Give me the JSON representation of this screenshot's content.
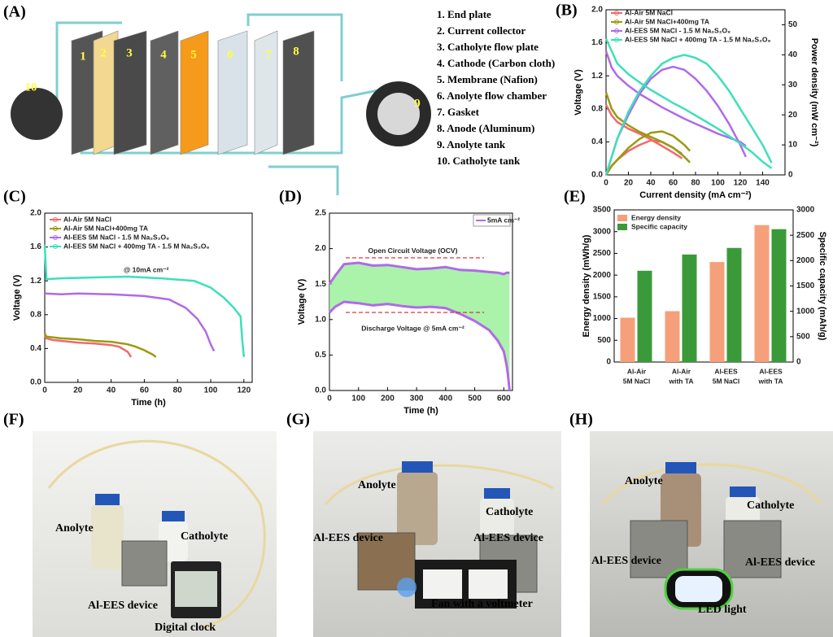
{
  "panel_labels": [
    "(A)",
    "(B)",
    "(C)",
    "(D)",
    "(E)",
    "(F)",
    "(G)",
    "(H)"
  ],
  "exploded_view": {
    "layer_labels": [
      "1",
      "2",
      "3",
      "4",
      "5",
      "6",
      "7",
      "8",
      "9",
      "10"
    ],
    "items": [
      "1.  End plate",
      "2.  Current collector",
      "3.  Catholyte flow plate",
      "4.  Cathode (Carbon cloth)",
      "5.  Membrane (Nafion)",
      "6.  Anolyte flow chamber",
      "7.  Gasket",
      "8.  Anode (Aluminum)",
      "9.  Anolyte tank",
      "10. Catholyte tank"
    ]
  },
  "chart_data": [
    {
      "type": "line",
      "xlabel": "Current density (mA cm⁻²)",
      "ylabel": "Voltage (V)",
      "y2label": "Power density (mW cm⁻²)",
      "xlim": [
        0,
        160
      ],
      "xticks": [
        0,
        20,
        40,
        60,
        80,
        100,
        120,
        140
      ],
      "ylim": [
        0,
        2.0
      ],
      "yticks": [
        {
          "value": 0,
          "label": "0.0"
        },
        0.4,
        0.8,
        1.2,
        1.6,
        {
          "value": 2.0,
          "label": "2.0"
        }
      ],
      "y2lim": [
        0,
        55
      ],
      "y2ticks": [
        0,
        10,
        20,
        30,
        40,
        50
      ],
      "series": [
        {
          "name": "Al-Air 5M NaCl",
          "color": "#f06a6a",
          "x": [
            0,
            5,
            10,
            20,
            30,
            40,
            50,
            60,
            68
          ],
          "values": [
            0.85,
            0.72,
            0.64,
            0.56,
            0.5,
            0.43,
            0.35,
            0.27,
            0.2
          ],
          "power": [
            0,
            3,
            5,
            8,
            10,
            11.5,
            11,
            9,
            7
          ]
        },
        {
          "name": "Al-Air 5M NaCl+400mg TA",
          "color": "#9a9a10",
          "x": [
            0,
            5,
            10,
            20,
            30,
            40,
            50,
            60,
            70,
            75
          ],
          "values": [
            1.0,
            0.8,
            0.7,
            0.6,
            0.52,
            0.46,
            0.4,
            0.33,
            0.22,
            0.15
          ],
          "power": [
            0,
            3,
            5,
            9,
            12,
            14,
            14.5,
            13,
            10,
            8
          ]
        },
        {
          "name": "Al-EES 5M NaCl - 1.5 M Na₂S₂O₈",
          "color": "#b06ae8",
          "x": [
            0,
            5,
            10,
            20,
            30,
            40,
            50,
            60,
            70,
            80,
            90,
            100,
            110,
            120,
            125
          ],
          "values": [
            1.5,
            1.3,
            1.2,
            1.08,
            0.98,
            0.9,
            0.82,
            0.75,
            0.68,
            0.62,
            0.56,
            0.5,
            0.45,
            0.4,
            0.35
          ],
          "power": [
            0,
            6,
            12,
            20,
            27,
            32,
            35,
            36,
            35,
            32,
            28,
            23,
            17,
            10,
            6
          ]
        },
        {
          "name": "Al-EES 5M NaCl + 400mg TA - 1.5 M Na₂S₂O₈",
          "color": "#3de0b8",
          "x": [
            0,
            10,
            20,
            30,
            40,
            50,
            60,
            70,
            80,
            90,
            100,
            110,
            120,
            130,
            140,
            148
          ],
          "values": [
            1.65,
            1.35,
            1.22,
            1.12,
            1.03,
            0.95,
            0.87,
            0.8,
            0.72,
            0.64,
            0.56,
            0.47,
            0.38,
            0.28,
            0.16,
            0.08
          ],
          "power": [
            0,
            12,
            21,
            28,
            33,
            37,
            39,
            40,
            39,
            37,
            33,
            28,
            22,
            16,
            10,
            4
          ]
        }
      ]
    },
    {
      "type": "line",
      "xlabel": "Time (h)",
      "ylabel": "Voltage (V)",
      "annotation": "@ 10mA cm⁻²",
      "xlim": [
        0,
        125
      ],
      "xticks": [
        0,
        20,
        40,
        60,
        80,
        100,
        120
      ],
      "ylim": [
        0,
        2.0
      ],
      "yticks": [
        {
          "value": 0,
          "label": "0.0"
        },
        0.4,
        0.8,
        1.2,
        1.6,
        {
          "value": 2.0,
          "label": "2.0"
        }
      ],
      "series": [
        {
          "name": "Al-Air 5M NaCl",
          "color": "#f06a6a",
          "x": [
            0,
            1,
            5,
            10,
            20,
            30,
            40,
            45,
            50,
            52
          ],
          "values": [
            0.55,
            0.52,
            0.5,
            0.49,
            0.47,
            0.46,
            0.44,
            0.42,
            0.36,
            0.3
          ]
        },
        {
          "name": "Al-Air 5M NaCl+400mg TA",
          "color": "#9a9a10",
          "x": [
            0,
            1,
            10,
            20,
            30,
            40,
            50,
            55,
            60,
            65,
            67
          ],
          "values": [
            0.58,
            0.54,
            0.52,
            0.51,
            0.49,
            0.48,
            0.45,
            0.42,
            0.38,
            0.33,
            0.3
          ]
        },
        {
          "name": "Al-EES 5M NaCl - 1.5 M Na₂S₂O₈",
          "color": "#b06ae8",
          "x": [
            0,
            10,
            20,
            40,
            60,
            75,
            85,
            92,
            97,
            100,
            102
          ],
          "values": [
            1.05,
            1.04,
            1.05,
            1.04,
            1.02,
            0.98,
            0.88,
            0.75,
            0.6,
            0.45,
            0.37
          ]
        },
        {
          "name": "Al-EES 5M NaCl + 400mg TA - 1.5 M Na₂S₂O₈",
          "color": "#3de0b8",
          "x": [
            0,
            1,
            10,
            30,
            50,
            70,
            90,
            100,
            108,
            114,
            118,
            119,
            120
          ],
          "values": [
            1.63,
            1.22,
            1.23,
            1.24,
            1.25,
            1.23,
            1.2,
            1.12,
            1.0,
            0.88,
            0.78,
            0.5,
            0.3
          ]
        }
      ]
    },
    {
      "type": "area",
      "xlabel": "Time (h)",
      "ylabel": "Voltage (V)",
      "legend": "5mA cm⁻²",
      "annotations": [
        "Open Circuit Voltage (OCV)",
        "Discharge Voltage @ 5mA cm⁻²"
      ],
      "reference_lines": [
        1.87,
        1.1
      ],
      "xlim": [
        0,
        630
      ],
      "xticks": [
        0,
        100,
        200,
        300,
        400,
        500,
        600
      ],
      "ylim": [
        0,
        2.5
      ],
      "yticks": [
        {
          "value": 0,
          "label": "0.0"
        },
        0.5,
        {
          "value": 1.0,
          "label": "1.0"
        },
        1.5,
        {
          "value": 2.0,
          "label": "2.0"
        },
        2.5
      ],
      "color": "#9cf09c",
      "line_color": "#b06ae8",
      "x": [
        0,
        20,
        50,
        100,
        150,
        200,
        250,
        300,
        350,
        400,
        450,
        500,
        550,
        580,
        600,
        610,
        615,
        620
      ],
      "ocv": [
        1.5,
        1.62,
        1.78,
        1.8,
        1.76,
        1.77,
        1.74,
        1.71,
        1.72,
        1.74,
        1.7,
        1.69,
        1.67,
        1.66,
        1.64,
        1.66,
        1.66,
        1.66
      ],
      "discharge": [
        1.1,
        1.18,
        1.25,
        1.23,
        1.2,
        1.22,
        1.19,
        1.17,
        1.18,
        1.16,
        1.08,
        0.98,
        0.85,
        0.7,
        0.55,
        0.35,
        0.2,
        0.0
      ]
    },
    {
      "type": "bar",
      "ylabel": "Energy density (mWh/g)",
      "y2label": "Specific capacity (mAh/g)",
      "categories": [
        [
          "Al-Air",
          "5M NaCl"
        ],
        [
          "Al-Air",
          "with TA"
        ],
        [
          "Al-EES",
          "5M NaCl"
        ],
        [
          "Al-EES",
          "with TA"
        ]
      ],
      "ylim": [
        0,
        3500
      ],
      "yticks": [
        0,
        500,
        1000,
        1500,
        2000,
        2500,
        3000,
        3500
      ],
      "y2lim": [
        0,
        3000
      ],
      "y2ticks": [
        0,
        500,
        1000,
        1500,
        2000,
        2500,
        3000
      ],
      "series": [
        {
          "name": "Energy density",
          "color": "#f5a07a",
          "values": [
            1020,
            1170,
            2300,
            3150
          ]
        },
        {
          "name": "Specific capacity",
          "color": "#3a9a3a",
          "axis": "y2",
          "values": [
            1800,
            2120,
            2250,
            2620
          ]
        }
      ]
    }
  ],
  "photos": [
    {
      "labels": [
        "Anolyte",
        "Catholyte",
        "Al-EES device",
        "Digital clock"
      ]
    },
    {
      "labels": [
        "Anolyte",
        "Catholyte",
        "Al-EES device",
        "Al-EES device",
        "Fan with a voltmeter"
      ]
    },
    {
      "labels": [
        "Anolyte",
        "Catholyte",
        "Al-EES device",
        "Al-EES device",
        "LED light"
      ]
    }
  ]
}
